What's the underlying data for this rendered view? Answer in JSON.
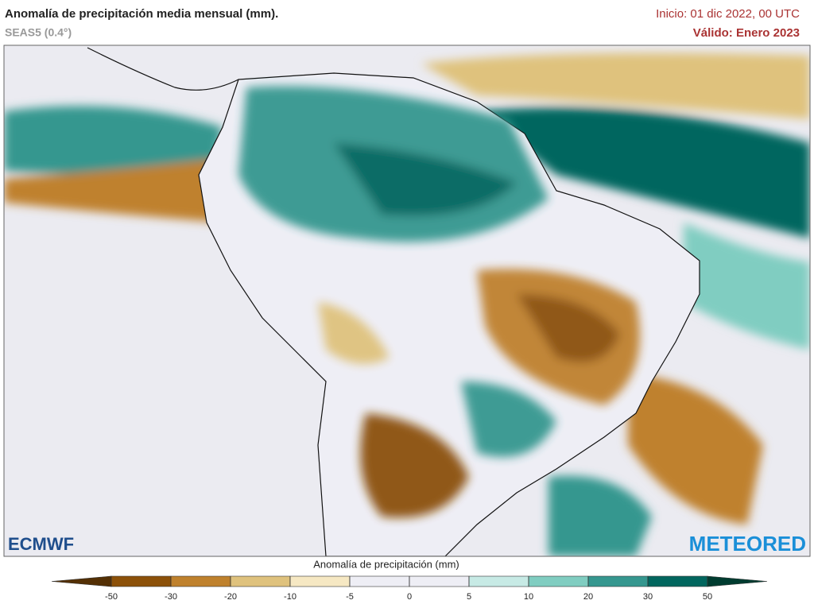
{
  "header": {
    "title": "Anomalía de precipitación media mensual (mm).",
    "model": "SEAS5 (0.4°)",
    "init": "Inicio: 01 dic 2022, 00 UTC",
    "valid": "Válido: Enero 2023"
  },
  "colorbar": {
    "title": "Anomalía de precipitación (mm)",
    "ticks": [
      -50,
      -30,
      -20,
      -10,
      -5,
      0,
      5,
      10,
      20,
      30,
      50
    ],
    "colors": [
      "#543005",
      "#8c5109",
      "#bf812d",
      "#dfc27d",
      "#f6e8c3",
      "#eeeef5",
      "#eeeef5",
      "#c7eae5",
      "#80cdc1",
      "#35978f",
      "#01665e",
      "#003c30"
    ]
  },
  "logos": {
    "left": "ECMWF",
    "right": "METEORED"
  }
}
